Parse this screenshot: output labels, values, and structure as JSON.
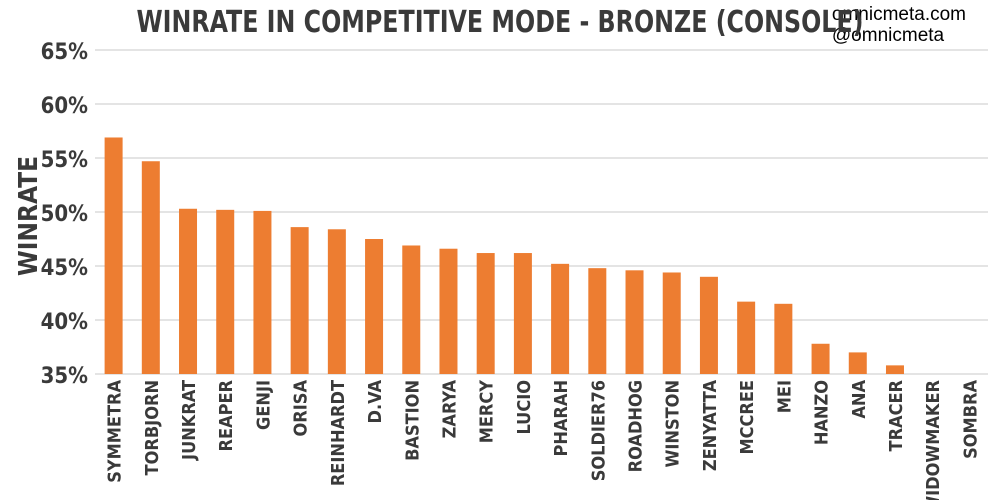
{
  "credit": {
    "line1": "omnicmeta.com",
    "line2": "@omnicmeta"
  },
  "colors": {
    "bar": "#ED7D31",
    "grid": "#c8c8c8",
    "text": "#3a3a3a"
  },
  "chart_data": {
    "type": "bar",
    "title": "WINRATE IN COMPETITIVE MODE - BRONZE (CONSOLE)",
    "xlabel": "",
    "ylabel": "WINRATE",
    "ylim": [
      35,
      65
    ],
    "yticks": [
      35,
      40,
      45,
      50,
      55,
      60,
      65
    ],
    "ytick_labels": [
      "35%",
      "40%",
      "45%",
      "50%",
      "55%",
      "60%",
      "65%"
    ],
    "grid": true,
    "categories": [
      "SYMMETRA",
      "TORBJORN",
      "JUNKRAT",
      "REAPER",
      "GENJI",
      "ORISA",
      "REINHARDT",
      "D.VA",
      "BASTION",
      "ZARYA",
      "MERCY",
      "LUCIO",
      "PHARAH",
      "SOLDIER76",
      "ROADHOG",
      "WINSTON",
      "ZENYATTA",
      "MCCREE",
      "MEI",
      "HANZO",
      "ANA",
      "TRACER",
      "WIDOWMAKER",
      "SOMBRA"
    ],
    "values": [
      56.9,
      54.7,
      50.3,
      50.2,
      50.1,
      48.6,
      48.4,
      47.5,
      46.9,
      46.6,
      46.2,
      46.2,
      45.2,
      44.8,
      44.6,
      44.4,
      44.0,
      41.7,
      41.5,
      37.8,
      37.0,
      35.8,
      35.0,
      35.0
    ]
  }
}
